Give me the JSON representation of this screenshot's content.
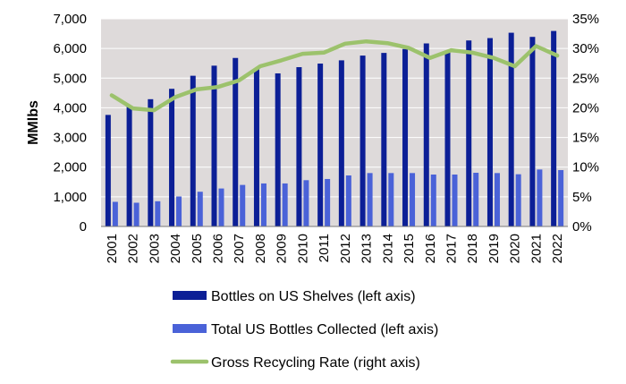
{
  "chart_data": {
    "type": "bar",
    "categories": [
      "2001",
      "2002",
      "2003",
      "2004",
      "2005",
      "2006",
      "2007",
      "2008",
      "2009",
      "2010",
      "2011",
      "2012",
      "2013",
      "2014",
      "2015",
      "2016",
      "2017",
      "2018",
      "2019",
      "2020",
      "2021",
      "2022"
    ],
    "ylabel": "MMlbs",
    "ylim": [
      0,
      7000
    ],
    "y_ticks": [
      0,
      1000,
      2000,
      3000,
      4000,
      5000,
      6000,
      7000
    ],
    "y_tick_labels": [
      "0",
      "1,000",
      "2,000",
      "3,000",
      "4,000",
      "5,000",
      "6,000",
      "7,000"
    ],
    "y2lim": [
      0,
      35
    ],
    "y2_ticks": [
      0,
      5,
      10,
      15,
      20,
      25,
      30,
      35
    ],
    "y2_tick_labels": [
      "0%",
      "5%",
      "10%",
      "15%",
      "20%",
      "25%",
      "30%",
      "35%"
    ],
    "grid": true,
    "legend_position": "bottom",
    "series": [
      {
        "name": "Bottles on US Shelves (left axis)",
        "type": "bar",
        "axis": "left",
        "color": "#0c1f96",
        "values": [
          3760,
          4040,
          4290,
          4640,
          5080,
          5420,
          5680,
          5300,
          5160,
          5370,
          5490,
          5600,
          5760,
          5850,
          5980,
          6170,
          5890,
          6270,
          6350,
          6530,
          6390,
          6590
        ]
      },
      {
        "name": "Total US Bottles Collected (left axis)",
        "type": "bar",
        "axis": "left",
        "color": "#4a62d8",
        "values": [
          830,
          800,
          850,
          1010,
          1170,
          1280,
          1400,
          1450,
          1450,
          1560,
          1600,
          1720,
          1800,
          1800,
          1800,
          1750,
          1750,
          1810,
          1800,
          1760,
          1920,
          1900
        ]
      },
      {
        "name": "Gross Recycling Rate (right axis)",
        "type": "line",
        "axis": "right",
        "color": "#9cc26c",
        "values": [
          22.1,
          19.9,
          19.6,
          21.8,
          23.1,
          23.5,
          24.6,
          27.0,
          28.0,
          29.1,
          29.3,
          30.8,
          31.2,
          30.9,
          30.1,
          28.4,
          29.7,
          29.3,
          28.4,
          27.0,
          30.4,
          28.8
        ]
      }
    ]
  }
}
